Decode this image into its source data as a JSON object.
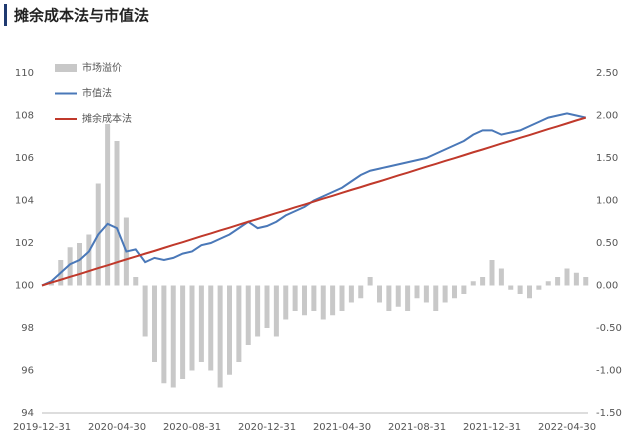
{
  "chart_data": {
    "type": "bar",
    "title": "摊余成本法与市值法",
    "categories": [
      "2019-12-31",
      null,
      null,
      null,
      null,
      null,
      null,
      null,
      "2020-04-30",
      null,
      null,
      null,
      null,
      null,
      null,
      null,
      "2020-08-31",
      null,
      null,
      null,
      null,
      null,
      null,
      null,
      "2020-12-31",
      null,
      null,
      null,
      null,
      null,
      null,
      null,
      "2021-04-30",
      null,
      null,
      null,
      null,
      null,
      null,
      null,
      "2021-08-31",
      null,
      null,
      null,
      null,
      null,
      null,
      null,
      "2021-12-31",
      null,
      null,
      null,
      null,
      null,
      null,
      null,
      "2022-04-30",
      null,
      null
    ],
    "series": [
      {
        "name": "市场溢价",
        "type": "bar",
        "axis": "y2",
        "color": "#c8c8c8",
        "values": [
          0,
          0.05,
          0.3,
          0.45,
          0.5,
          0.6,
          1.2,
          1.9,
          1.7,
          0.8,
          0.1,
          -0.6,
          -0.9,
          -1.15,
          -1.2,
          -1.1,
          -1.0,
          -0.9,
          -1.0,
          -1.2,
          -1.05,
          -0.9,
          -0.7,
          -0.6,
          -0.5,
          -0.6,
          -0.4,
          -0.3,
          -0.35,
          -0.3,
          -0.4,
          -0.35,
          -0.3,
          -0.2,
          -0.15,
          0.1,
          -0.2,
          -0.3,
          -0.25,
          -0.3,
          -0.15,
          -0.2,
          -0.3,
          -0.2,
          -0.15,
          -0.1,
          0.05,
          0.1,
          0.3,
          0.2,
          -0.05,
          -0.1,
          -0.15,
          -0.05,
          0.05,
          0.1,
          0.2,
          0.15,
          0.1
        ]
      },
      {
        "name": "市值法",
        "type": "line",
        "axis": "y",
        "color": "#4a78b8",
        "values": [
          100,
          100.2,
          100.6,
          101.0,
          101.2,
          101.6,
          102.4,
          102.9,
          102.7,
          101.6,
          101.7,
          101.1,
          101.3,
          101.2,
          101.3,
          101.5,
          101.6,
          101.9,
          102.0,
          102.2,
          102.4,
          102.7,
          103.0,
          102.7,
          102.8,
          103.0,
          103.3,
          103.5,
          103.7,
          104.0,
          104.2,
          104.4,
          104.6,
          104.9,
          105.2,
          105.4,
          105.5,
          105.6,
          105.7,
          105.8,
          105.9,
          106.0,
          106.2,
          106.4,
          106.6,
          106.8,
          107.1,
          107.3,
          107.3,
          107.1,
          107.2,
          107.3,
          107.5,
          107.7,
          107.9,
          108.0,
          108.1,
          108.0,
          107.9
        ]
      },
      {
        "name": "摊余成本法",
        "type": "line",
        "axis": "y",
        "color": "#c0392b",
        "values": [
          100.0,
          100.14,
          100.27,
          100.41,
          100.54,
          100.68,
          100.82,
          100.95,
          101.09,
          101.23,
          101.36,
          101.5,
          101.63,
          101.77,
          101.91,
          102.04,
          102.18,
          102.32,
          102.45,
          102.59,
          102.72,
          102.86,
          103.0,
          103.13,
          103.27,
          103.41,
          103.54,
          103.68,
          103.81,
          103.95,
          104.09,
          104.22,
          104.36,
          104.5,
          104.63,
          104.77,
          104.9,
          105.04,
          105.18,
          105.31,
          105.45,
          105.59,
          105.72,
          105.86,
          105.99,
          106.13,
          106.27,
          106.4,
          106.54,
          106.68,
          106.81,
          106.95,
          107.08,
          107.22,
          107.36,
          107.49,
          107.63,
          107.77,
          107.9
        ]
      }
    ],
    "ylim": [
      94,
      110
    ],
    "yticks": [
      94,
      96,
      98,
      100,
      102,
      104,
      106,
      108,
      110
    ],
    "y2lim": [
      -1.5,
      2.5
    ],
    "y2ticks": [
      {
        "value": -1.5,
        "label": "-1.50"
      },
      {
        "value": -1,
        "label": "-1.00"
      },
      {
        "value": -0.5,
        "label": "-0.50"
      },
      {
        "value": 0,
        "label": "0.00"
      },
      {
        "value": 0.5,
        "label": "0.50"
      },
      {
        "value": 1,
        "label": "1.00"
      },
      {
        "value": 1.5,
        "label": "1.50"
      },
      {
        "value": 2,
        "label": "2.00"
      },
      {
        "value": 2.5,
        "label": "2.50"
      }
    ],
    "legend": "upper-left",
    "grid": false
  }
}
